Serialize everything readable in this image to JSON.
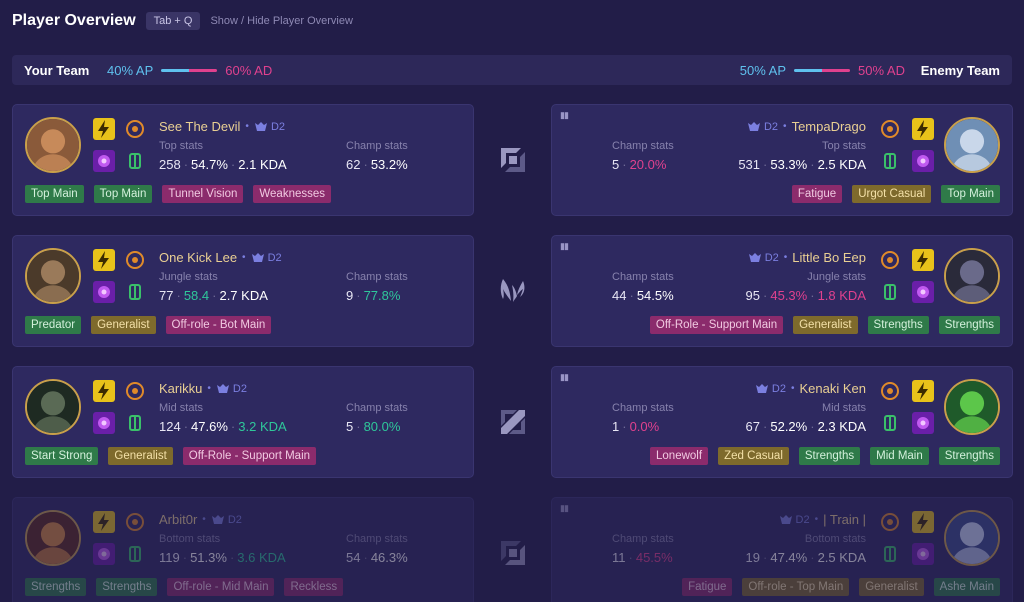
{
  "header": {
    "title": "Player Overview",
    "shortcut": "Tab + Q",
    "hint": "Show / Hide Player Overview"
  },
  "teams": {
    "left_name": "Your Team",
    "left_ap": "40% AP",
    "left_ad": "60% AD",
    "right_name": "Enemy Team",
    "right_ap": "50% AP",
    "right_ad": "50% AD"
  },
  "rows": [
    {
      "lane_icon": "top-lane-icon",
      "ally": {
        "name": "See The Devil",
        "rank": "D2",
        "role_label": "Top stats",
        "games": "258",
        "wr": "54.7%",
        "kda": "2.1 KDA",
        "kda_color": "white",
        "champ_label": "Champ stats",
        "champ_games": "62",
        "champ_wr": "53.2%",
        "champ_color": "white",
        "tags": [
          {
            "t": "Top Main",
            "c": "g"
          },
          {
            "t": "Top Main",
            "c": "g"
          },
          {
            "t": "Tunnel Vision",
            "c": "p"
          },
          {
            "t": "Weaknesses",
            "c": "p"
          }
        ]
      },
      "enemy": {
        "name": "TempaDrago",
        "rank": "D2",
        "role_label": "Top stats",
        "games": "531",
        "wr": "53.3%",
        "kda": "2.5 KDA",
        "kda_color": "white",
        "champ_label": "Champ stats",
        "champ_games": "5",
        "champ_wr": "20.0%",
        "champ_color": "red",
        "tags": [
          {
            "t": "Fatigue",
            "c": "p"
          },
          {
            "t": "Urgot Casual",
            "c": "y"
          },
          {
            "t": "Top Main",
            "c": "g"
          }
        ]
      }
    },
    {
      "lane_icon": "jungle-lane-icon",
      "ally": {
        "name": "One Kick Lee",
        "rank": "D2",
        "role_label": "Jungle stats",
        "games": "77",
        "wr": "58.4",
        "kda": "2.7 KDA",
        "kda_color": "white",
        "wr_color": "green",
        "champ_label": "Champ stats",
        "champ_games": "9",
        "champ_wr": "77.8%",
        "champ_color": "green",
        "tags": [
          {
            "t": "Predator",
            "c": "g"
          },
          {
            "t": "Generalist",
            "c": "y"
          },
          {
            "t": "Off-role - Bot Main",
            "c": "p"
          }
        ]
      },
      "enemy": {
        "name": "Little Bo Eep",
        "rank": "D2",
        "role_label": "Jungle stats",
        "games": "95",
        "wr": "45.3%",
        "kda": "1.8 KDA",
        "kda_color": "red",
        "wr_color": "red",
        "champ_label": "Champ stats",
        "champ_games": "44",
        "champ_wr": "54.5%",
        "champ_color": "white",
        "tags": [
          {
            "t": "Off-Role - Support Main",
            "c": "p"
          },
          {
            "t": "Generalist",
            "c": "y"
          },
          {
            "t": "Strengths",
            "c": "g"
          },
          {
            "t": "Strengths",
            "c": "g"
          }
        ]
      }
    },
    {
      "lane_icon": "mid-lane-icon",
      "ally": {
        "name": "Karikku",
        "rank": "D2",
        "role_label": "Mid stats",
        "games": "124",
        "wr": "47.6%",
        "kda": "3.2 KDA",
        "kda_color": "green",
        "champ_label": "Champ stats",
        "champ_games": "5",
        "champ_wr": "80.0%",
        "champ_color": "green",
        "tags": [
          {
            "t": "Start Strong",
            "c": "g"
          },
          {
            "t": "Generalist",
            "c": "y"
          },
          {
            "t": "Off-Role - Support Main",
            "c": "p"
          }
        ]
      },
      "enemy": {
        "name": "Kenaki Ken",
        "rank": "D2",
        "role_label": "Mid stats",
        "games": "67",
        "wr": "52.2%",
        "kda": "2.3 KDA",
        "kda_color": "white",
        "champ_label": "Champ stats",
        "champ_games": "1",
        "champ_wr": "0.0%",
        "champ_color": "red",
        "tags": [
          {
            "t": "Lonewolf",
            "c": "p"
          },
          {
            "t": "Zed Casual",
            "c": "y"
          },
          {
            "t": "Strengths",
            "c": "g"
          },
          {
            "t": "Mid Main",
            "c": "g"
          },
          {
            "t": "Strengths",
            "c": "g"
          }
        ]
      }
    },
    {
      "lane_icon": "bottom-lane-icon",
      "ally": {
        "name": "Arbit0r",
        "rank": "D2",
        "role_label": "Bottom stats",
        "games": "119",
        "wr": "51.3%",
        "kda": "3.6 KDA",
        "kda_color": "green",
        "champ_label": "Champ stats",
        "champ_games": "54",
        "champ_wr": "46.3%",
        "champ_color": "white",
        "tags": [
          {
            "t": "Strengths",
            "c": "g"
          },
          {
            "t": "Strengths",
            "c": "g"
          },
          {
            "t": "Off-role - Mid Main",
            "c": "p"
          },
          {
            "t": "Reckless",
            "c": "p"
          }
        ]
      },
      "enemy": {
        "name": "| Train |",
        "rank": "D2",
        "role_label": "Bottom stats",
        "games": "19",
        "wr": "47.4%",
        "kda": "2.5 KDA",
        "kda_color": "white",
        "champ_label": "Champ stats",
        "champ_games": "11",
        "champ_wr": "45.5%",
        "champ_color": "red",
        "tags": [
          {
            "t": "Fatigue",
            "c": "p"
          },
          {
            "t": "Off-role - Top Main",
            "c": "y"
          },
          {
            "t": "Generalist",
            "c": "y"
          },
          {
            "t": "Ashe Main",
            "c": "g"
          }
        ]
      }
    }
  ],
  "colors": {
    "ap": "#5fc1ee",
    "ad": "#e0418e",
    "gold": "#c9a04a"
  }
}
